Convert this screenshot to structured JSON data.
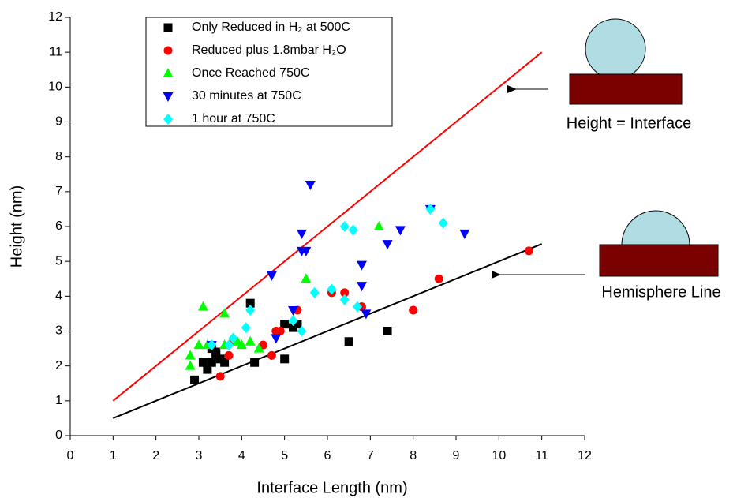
{
  "chart_data": {
    "type": "scatter",
    "xlabel": "Interface Length (nm)",
    "ylabel": "Height (nm)",
    "xlim": [
      0,
      12
    ],
    "ylim": [
      0,
      12
    ],
    "xticks": [
      0,
      1,
      2,
      3,
      4,
      5,
      6,
      7,
      8,
      9,
      10,
      11,
      12
    ],
    "yticks": [
      0,
      1,
      2,
      3,
      4,
      5,
      6,
      7,
      8,
      9,
      10,
      11,
      12
    ],
    "legend": "upper left",
    "series": [
      {
        "name": "Only Reduced in H₂ at 500C",
        "color": "#000000",
        "marker": "square",
        "x": [
          2.9,
          3.1,
          3.2,
          3.3,
          3.4,
          3.5,
          3.6,
          4.2,
          4.3,
          5.0,
          5.0,
          5.2,
          5.3,
          6.5,
          7.4,
          3.3,
          3.4
        ],
        "values": [
          1.6,
          2.1,
          1.9,
          2.1,
          2.3,
          2.2,
          2.1,
          3.8,
          2.1,
          2.2,
          3.2,
          3.1,
          3.2,
          2.7,
          3.0,
          2.5,
          2.4
        ]
      },
      {
        "name": "Reduced plus 1.8mbar H₂O",
        "color": "#ff0000",
        "marker": "circle",
        "x": [
          3.5,
          3.7,
          3.8,
          4.5,
          4.7,
          4.8,
          5.3,
          6.1,
          6.4,
          6.8,
          8.0,
          8.6,
          10.7,
          4.9
        ],
        "values": [
          1.7,
          2.3,
          2.7,
          2.6,
          2.3,
          3.0,
          3.6,
          4.1,
          4.1,
          3.7,
          3.6,
          4.5,
          5.3,
          3.0
        ]
      },
      {
        "name": "Once Reached 750C",
        "color": "#00ff00",
        "marker": "triangle",
        "x": [
          2.8,
          2.8,
          3.0,
          3.1,
          3.2,
          3.6,
          3.6,
          4.0,
          4.2,
          4.4,
          5.5,
          7.2,
          3.9
        ],
        "values": [
          2.3,
          2.0,
          2.6,
          3.7,
          2.6,
          3.5,
          2.6,
          2.6,
          2.7,
          2.5,
          4.5,
          6.0,
          2.7
        ]
      },
      {
        "name": "30 minutes at 750C",
        "color": "#0000ff",
        "marker": "down-triangle",
        "x": [
          3.3,
          4.7,
          4.8,
          5.2,
          5.4,
          5.5,
          5.4,
          5.6,
          6.8,
          6.8,
          6.9,
          7.4,
          7.7,
          8.4,
          9.2
        ],
        "values": [
          2.6,
          4.6,
          2.8,
          3.6,
          5.8,
          5.3,
          5.3,
          7.2,
          4.9,
          4.3,
          3.5,
          5.5,
          5.9,
          6.5,
          5.8
        ]
      },
      {
        "name": "1 hour at 750C",
        "color": "#00ffff",
        "marker": "diamond",
        "x": [
          3.3,
          3.7,
          3.8,
          4.1,
          4.2,
          5.2,
          5.4,
          5.7,
          6.1,
          6.4,
          6.6,
          6.4,
          6.7,
          8.4,
          8.7
        ],
        "values": [
          2.6,
          2.6,
          2.8,
          3.1,
          3.6,
          3.3,
          3.0,
          4.1,
          4.2,
          6.0,
          5.9,
          3.9,
          3.7,
          6.5,
          6.1
        ]
      }
    ],
    "lines": [
      {
        "color": "#ff0000",
        "x": [
          1,
          11
        ],
        "values": [
          1,
          11
        ]
      },
      {
        "color": "#000000",
        "x": [
          1,
          11
        ],
        "values": [
          0.5,
          5.5
        ]
      }
    ],
    "annotations": [
      "Height = Interface",
      "Hemisphere Line"
    ]
  }
}
